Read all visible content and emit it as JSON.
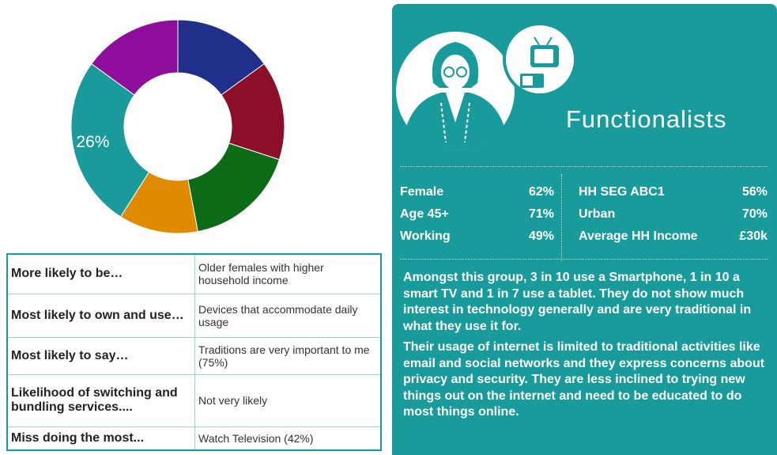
{
  "chart_data": {
    "type": "pie",
    "values": [
      15,
      15,
      17,
      12,
      26,
      15
    ],
    "colors": [
      "#1f2f8a",
      "#8b0e2a",
      "#0c6b16",
      "#e08a00",
      "#1a9a9a",
      "#8e0d9c"
    ],
    "value_labels": [
      null,
      null,
      null,
      null,
      "26%",
      null
    ]
  },
  "table": {
    "rows": [
      [
        "More likely to be…",
        "Older females with higher household income"
      ],
      [
        "Most likely to own and use…",
        "Devices that accommodate daily usage"
      ],
      [
        "Most likely to say…",
        "Traditions are very important to me (75%)"
      ],
      [
        "Likelihood of switching and bundling services....",
        "Not very likely"
      ],
      [
        "Miss doing the most...",
        "Watch Television (42%)"
      ]
    ]
  },
  "panel": {
    "title": "Functionalists",
    "stats_left": [
      [
        "Female",
        "62%"
      ],
      [
        "Age 45+",
        "71%"
      ],
      [
        "Working",
        "49%"
      ]
    ],
    "stats_right": [
      [
        "HH SEG ABC1",
        "56%"
      ],
      [
        "Urban",
        "70%"
      ],
      [
        "Average HH Income",
        "£30k"
      ]
    ],
    "paragraphs": [
      "Amongst this group, 3 in 10 use a Smartphone, 1 in 10 a smart TV and 1 in 7 use a tablet. They do not show much interest in technology generally and are very traditional in what they use it for.",
      "Their usage of internet is limited to traditional activities like email and social networks and they express concerns about privacy and security. They are less inclined to trying new things out on the internet and need to be educated to do most things online."
    ]
  }
}
